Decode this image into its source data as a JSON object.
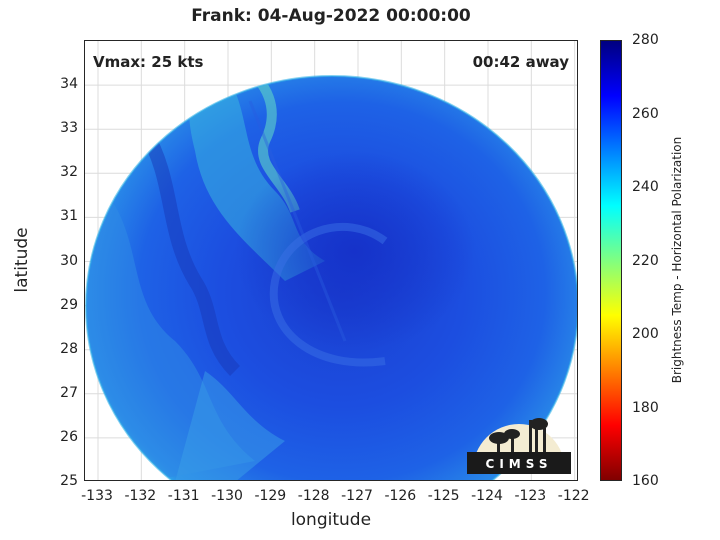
{
  "title": "Frank: 04-Aug-2022 00:00:00",
  "vmax_label": "Vmax: 25 kts",
  "away_label": "00:42 away",
  "xlabel": "longitude",
  "ylabel": "latitude",
  "x_ticks": [
    "-133",
    "-132",
    "-131",
    "-130",
    "-129",
    "-128",
    "-127",
    "-126",
    "-125",
    "-124",
    "-123",
    "-122"
  ],
  "y_ticks": [
    "34",
    "33",
    "32",
    "31",
    "30",
    "29",
    "28",
    "27",
    "26",
    "25"
  ],
  "colorbar": {
    "label": "Brightness Temp - Horizontal Polarization",
    "ticks": [
      "280",
      "260",
      "240",
      "220",
      "200",
      "180",
      "160"
    ],
    "range": [
      160,
      280
    ],
    "colors": [
      "#800000",
      "#ff0000",
      "#ff8000",
      "#ffff00",
      "#80ff80",
      "#00ffff",
      "#0080ff",
      "#0000ff",
      "#000080"
    ]
  },
  "map": {
    "x_range": [
      -133.3,
      -121.9
    ],
    "y_range": [
      25,
      35
    ],
    "swath_center": [
      -127.2,
      29.9
    ],
    "swath_color": "#1e54e0",
    "eye_color": "#1530c8",
    "edge_color": "#2a9ae8"
  },
  "logo_text": "CIMSS",
  "colors": {
    "axis": "#262626",
    "grid": "#dcdcdc",
    "text": "#222222"
  }
}
